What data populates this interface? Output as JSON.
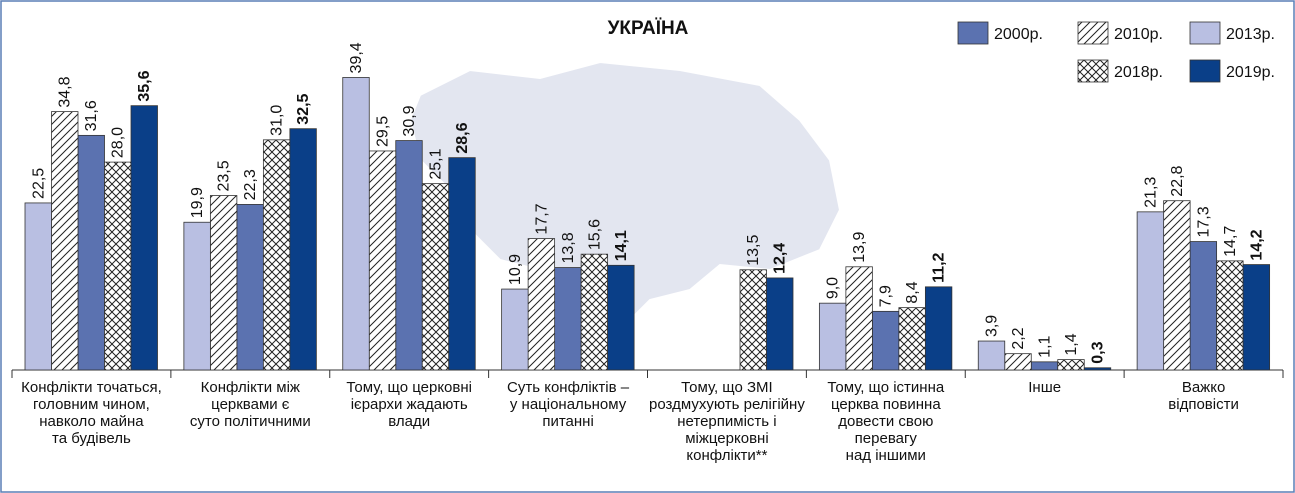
{
  "chart_data": {
    "type": "bar",
    "title": "УКРАЇНА",
    "categories": [
      [
        "Конфлікти точаться,",
        "головним чином,",
        "навколо майна",
        "та будівель"
      ],
      [
        "Конфлікти між",
        "церквами є",
        "суто політичними"
      ],
      [
        "Тому, що церковні",
        "ієрархи жадають",
        "влади"
      ],
      [
        "Суть конфліктів –",
        "у національному",
        "питанні"
      ],
      [
        "Тому, що ЗМІ",
        "роздмухують релігійну",
        "нетерпимість і",
        "міжцерковні",
        "конфлікти**"
      ],
      [
        "Тому, що істинна",
        "церква повинна",
        "довести свою",
        "перевагу",
        "над іншими"
      ],
      [
        "Інше"
      ],
      [
        "Важко",
        "відповісти"
      ]
    ],
    "ylim": [
      0,
      40
    ],
    "series": [
      {
        "name": "2000р.",
        "color": "#5b72b0",
        "pattern": "solid",
        "values": [
          31.6,
          22.3,
          30.9,
          13.8,
          null,
          7.9,
          1.1,
          17.3
        ],
        "value_labels": [
          "31,6",
          "22,3",
          "30,9",
          "13,8",
          null,
          "7,9",
          "1,1",
          "17,3"
        ]
      },
      {
        "name": "2010р.",
        "color": "#ffffff",
        "pattern": "diagonal",
        "values": [
          34.8,
          23.5,
          29.5,
          17.7,
          null,
          13.9,
          2.2,
          22.8
        ],
        "value_labels": [
          "34,8",
          "23,5",
          "29,5",
          "17,7",
          null,
          "13,9",
          "2,2",
          "22,8"
        ]
      },
      {
        "name": "2013р.",
        "color": "#b9bfe2",
        "pattern": "solid",
        "values": [
          22.5,
          19.9,
          39.4,
          10.9,
          null,
          9.0,
          3.9,
          21.3
        ],
        "value_labels": [
          "22,5",
          "19,9",
          "39,4",
          "10,9",
          null,
          "9,0",
          "3,9",
          "21,3"
        ]
      },
      {
        "name": "2018р.",
        "color": "#ffffff",
        "pattern": "crosshatch",
        "values": [
          28.0,
          31.0,
          25.1,
          15.6,
          13.5,
          8.4,
          1.4,
          14.7
        ],
        "value_labels": [
          "28,0",
          "31,0",
          "25,1",
          "15,6",
          "13,5",
          "8,4",
          "1,4",
          "14,7"
        ]
      },
      {
        "name": "2019р.",
        "color": "#0a3f88",
        "pattern": "solid",
        "values": [
          35.6,
          32.5,
          28.6,
          14.1,
          12.4,
          11.2,
          0.3,
          14.2
        ],
        "value_labels": [
          "35,6",
          "32,5",
          "28,6",
          "14,1",
          "12,4",
          "11,2",
          "0,3",
          "14,2"
        ]
      }
    ]
  }
}
